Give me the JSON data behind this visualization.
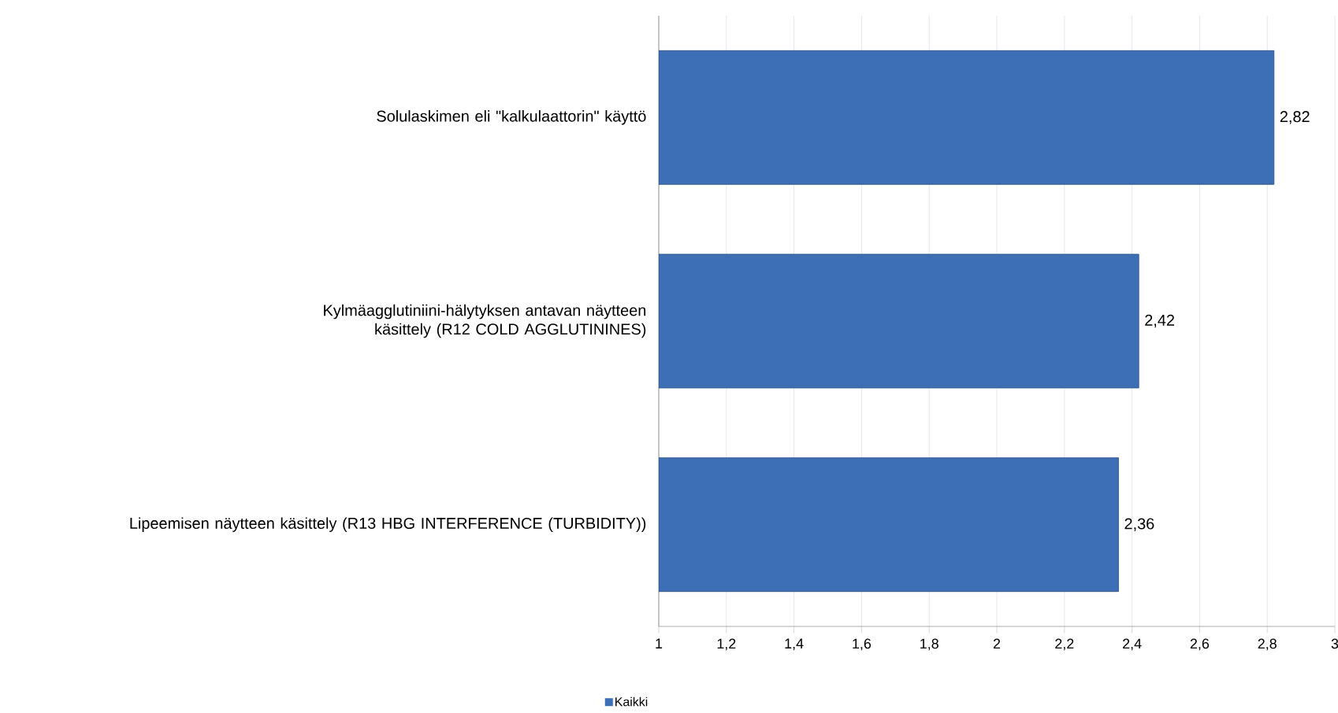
{
  "chart_data": {
    "type": "bar",
    "orientation": "horizontal",
    "categories": [
      "Solulaskimen eli \"kalkulaattorin\" käyttö",
      "Kylmäagglutiniini-hälytyksen antavan näytteen käsittely (R12 COLD AGGLUTININES)",
      "Lipeemisen näytteen käsittely (R13 HBG INTERFERENCE (TURBIDITY))"
    ],
    "series": [
      {
        "name": "Kaikki",
        "color": "#3d6fb6",
        "values": [
          2.82,
          2.42,
          2.36
        ],
        "value_labels": [
          "2,82",
          "2,42",
          "2,36"
        ]
      }
    ],
    "xlim": [
      1,
      3
    ],
    "xticks": [
      1,
      {
        "value": 1.2,
        "label": "1,2"
      },
      {
        "value": 1.4,
        "label": "1,4"
      },
      {
        "value": 1.6,
        "label": "1,6"
      },
      {
        "value": 1.8,
        "label": "1,8"
      },
      2,
      {
        "value": 2.2,
        "label": "2,2"
      },
      {
        "value": 2.4,
        "label": "2,4"
      },
      {
        "value": 2.6,
        "label": "2,6"
      },
      {
        "value": 2.8,
        "label": "2,8"
      },
      3
    ],
    "grid": "x",
    "legend": "bottom left"
  }
}
